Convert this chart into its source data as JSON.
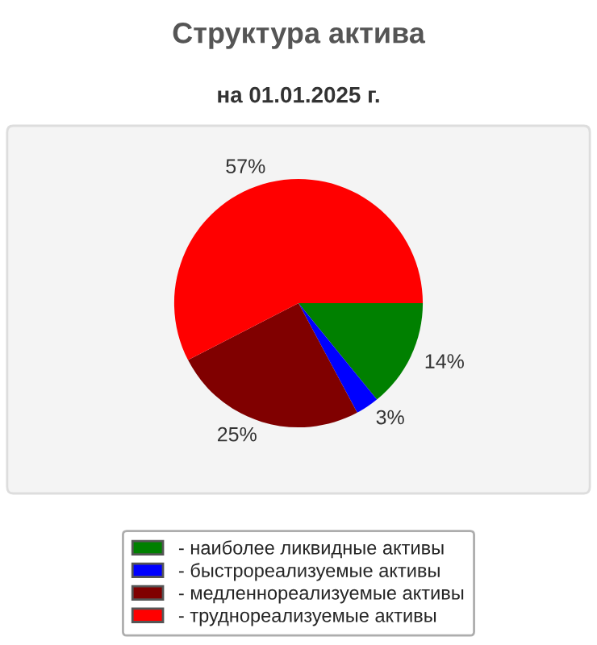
{
  "chart_data": {
    "type": "pie",
    "title": "Структура актива",
    "subtitle": "на 01.01.2025 г.",
    "categories": [
      "- наиболее ликвидные активы",
      "- быстрореализуемые активы",
      "- медленнореализуемые активы",
      "- труднореализуемые активы"
    ],
    "values": [
      14,
      3,
      25,
      57
    ],
    "colors": [
      "#008000",
      "#0000ff",
      "#800000",
      "#ff0000"
    ],
    "value_labels": [
      "14%",
      "3%",
      "25%",
      "57%"
    ],
    "legend": "bottom"
  }
}
